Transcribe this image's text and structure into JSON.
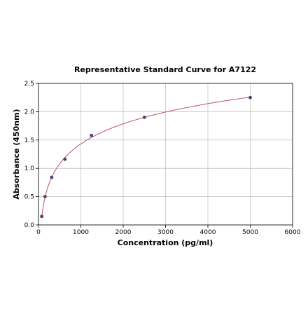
{
  "chart_data": {
    "type": "scatter",
    "title": "Representative Standard Curve for A7122",
    "xlabel": "Concentration (pg/ml)",
    "ylabel": "Absorbance (450nm)",
    "xlim": [
      0,
      6000
    ],
    "ylim": [
      0,
      2.5
    ],
    "xticks": [
      "0",
      "1000",
      "2000",
      "3000",
      "4000",
      "5000",
      "6000"
    ],
    "yticks": [
      "0.0",
      "0.5",
      "1.0",
      "1.5",
      "2.0",
      "2.5"
    ],
    "grid": true,
    "series": [
      {
        "x": [
          78,
          156,
          312,
          625,
          1250,
          2500,
          5000
        ],
        "y": [
          0.15,
          0.5,
          0.84,
          1.16,
          1.58,
          1.9,
          2.25
        ]
      }
    ],
    "fit_curve": true,
    "colors": {
      "points": "#4a3f78",
      "curve": "#c0506a",
      "grid": "#b0b0b0"
    }
  }
}
